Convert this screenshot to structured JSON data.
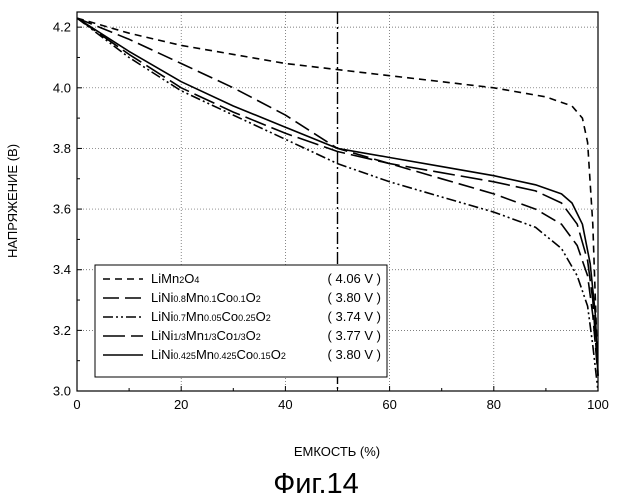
{
  "chart_data": {
    "type": "line",
    "xlabel": "ЕМКОСТЬ (%)",
    "ylabel": "НАПРЯЖЕНИЕ (В)",
    "xlim": [
      0,
      100
    ],
    "ylim": [
      3.0,
      4.25
    ],
    "x_ticks": [
      "0",
      "20",
      "40",
      "60",
      "80",
      "100"
    ],
    "y_ticks": [
      "3.0",
      "3.2",
      "3.4",
      "3.6",
      "3.8",
      "4.0",
      "4.2"
    ],
    "grid": "dotted",
    "vertical_reference_line_x": 50,
    "legend_position": "bottom-left",
    "caption": "Фиг.14",
    "series": [
      {
        "name": "LiMn2O4",
        "legend_parts": [
          [
            "LiMn",
            "n"
          ],
          [
            "2",
            "s"
          ],
          [
            "O",
            "n"
          ],
          [
            "4",
            "s"
          ]
        ],
        "value_label": "( 4.06 V )",
        "line_style": "dash",
        "points": [
          [
            0,
            4.23
          ],
          [
            10,
            4.18
          ],
          [
            20,
            4.14
          ],
          [
            30,
            4.11
          ],
          [
            40,
            4.08
          ],
          [
            50,
            4.06
          ],
          [
            60,
            4.04
          ],
          [
            70,
            4.02
          ],
          [
            80,
            4.0
          ],
          [
            90,
            3.97
          ],
          [
            95,
            3.94
          ],
          [
            97,
            3.9
          ],
          [
            98,
            3.82
          ],
          [
            99,
            3.55
          ],
          [
            99.6,
            3.25
          ],
          [
            100,
            3.05
          ]
        ]
      },
      {
        "name": "LiNi0.8Mn0.1Co0.1O2",
        "legend_parts": [
          [
            "LiNi",
            "n"
          ],
          [
            "0.8",
            "s"
          ],
          [
            "Mn",
            "n"
          ],
          [
            "0.1",
            "s"
          ],
          [
            "Co",
            "n"
          ],
          [
            "0.1",
            "s"
          ],
          [
            "O",
            "n"
          ],
          [
            "2",
            "s"
          ]
        ],
        "value_label": "( 3.80 V )",
        "line_style": "longdash",
        "points": [
          [
            0,
            4.23
          ],
          [
            10,
            4.16
          ],
          [
            20,
            4.08
          ],
          [
            30,
            4.0
          ],
          [
            40,
            3.91
          ],
          [
            50,
            3.8
          ],
          [
            60,
            3.75
          ],
          [
            70,
            3.7
          ],
          [
            80,
            3.65
          ],
          [
            88,
            3.6
          ],
          [
            93,
            3.55
          ],
          [
            96,
            3.48
          ],
          [
            98,
            3.38
          ],
          [
            99,
            3.25
          ],
          [
            100,
            3.05
          ]
        ]
      },
      {
        "name": "LiNi0.7Mn0.05Co0.25O2",
        "legend_parts": [
          [
            "LiNi",
            "n"
          ],
          [
            "0.7",
            "s"
          ],
          [
            "Mn",
            "n"
          ],
          [
            "0.05",
            "s"
          ],
          [
            "Co",
            "n"
          ],
          [
            "0.25",
            "s"
          ],
          [
            "O",
            "n"
          ],
          [
            "2",
            "s"
          ]
        ],
        "value_label": "( 3.74 V )",
        "line_style": "dashdotdot",
        "points": [
          [
            0,
            4.23
          ],
          [
            10,
            4.1
          ],
          [
            20,
            3.99
          ],
          [
            30,
            3.91
          ],
          [
            40,
            3.83
          ],
          [
            50,
            3.75
          ],
          [
            60,
            3.69
          ],
          [
            70,
            3.64
          ],
          [
            80,
            3.59
          ],
          [
            88,
            3.54
          ],
          [
            93,
            3.47
          ],
          [
            96,
            3.38
          ],
          [
            98,
            3.28
          ],
          [
            99,
            3.15
          ],
          [
            100,
            3.0
          ]
        ]
      },
      {
        "name": "LiNi1/3Mn1/3Co1/3O2",
        "legend_parts": [
          [
            "LiNi",
            "n"
          ],
          [
            "1/3",
            "s"
          ],
          [
            "Mn",
            "n"
          ],
          [
            "1/3",
            "s"
          ],
          [
            "Co",
            "n"
          ],
          [
            "1/3",
            "s"
          ],
          [
            "O",
            "n"
          ],
          [
            "2",
            "s"
          ]
        ],
        "value_label": "( 3.77 V )",
        "line_style": "longdash2",
        "points": [
          [
            0,
            4.23
          ],
          [
            10,
            4.11
          ],
          [
            20,
            4.0
          ],
          [
            30,
            3.92
          ],
          [
            40,
            3.85
          ],
          [
            50,
            3.79
          ],
          [
            60,
            3.75
          ],
          [
            70,
            3.72
          ],
          [
            80,
            3.69
          ],
          [
            88,
            3.66
          ],
          [
            93,
            3.62
          ],
          [
            96,
            3.55
          ],
          [
            98,
            3.43
          ],
          [
            99,
            3.3
          ],
          [
            100,
            3.05
          ]
        ]
      },
      {
        "name": "LiNi0.425Mn0.425Co0.15O2",
        "legend_parts": [
          [
            "LiNi",
            "n"
          ],
          [
            "0.425",
            "s"
          ],
          [
            "Mn",
            "n"
          ],
          [
            "0.425",
            "s"
          ],
          [
            "Co",
            "n"
          ],
          [
            "0.15",
            "s"
          ],
          [
            "O",
            "n"
          ],
          [
            "2",
            "s"
          ]
        ],
        "value_label": "( 3.80 V )",
        "line_style": "solid",
        "points": [
          [
            0,
            4.23
          ],
          [
            10,
            4.12
          ],
          [
            20,
            4.02
          ],
          [
            30,
            3.94
          ],
          [
            40,
            3.87
          ],
          [
            50,
            3.8
          ],
          [
            60,
            3.77
          ],
          [
            70,
            3.74
          ],
          [
            80,
            3.71
          ],
          [
            88,
            3.68
          ],
          [
            93,
            3.65
          ],
          [
            95,
            3.62
          ],
          [
            97,
            3.55
          ],
          [
            98.5,
            3.42
          ],
          [
            99.5,
            3.25
          ],
          [
            100,
            3.05
          ]
        ]
      }
    ]
  }
}
